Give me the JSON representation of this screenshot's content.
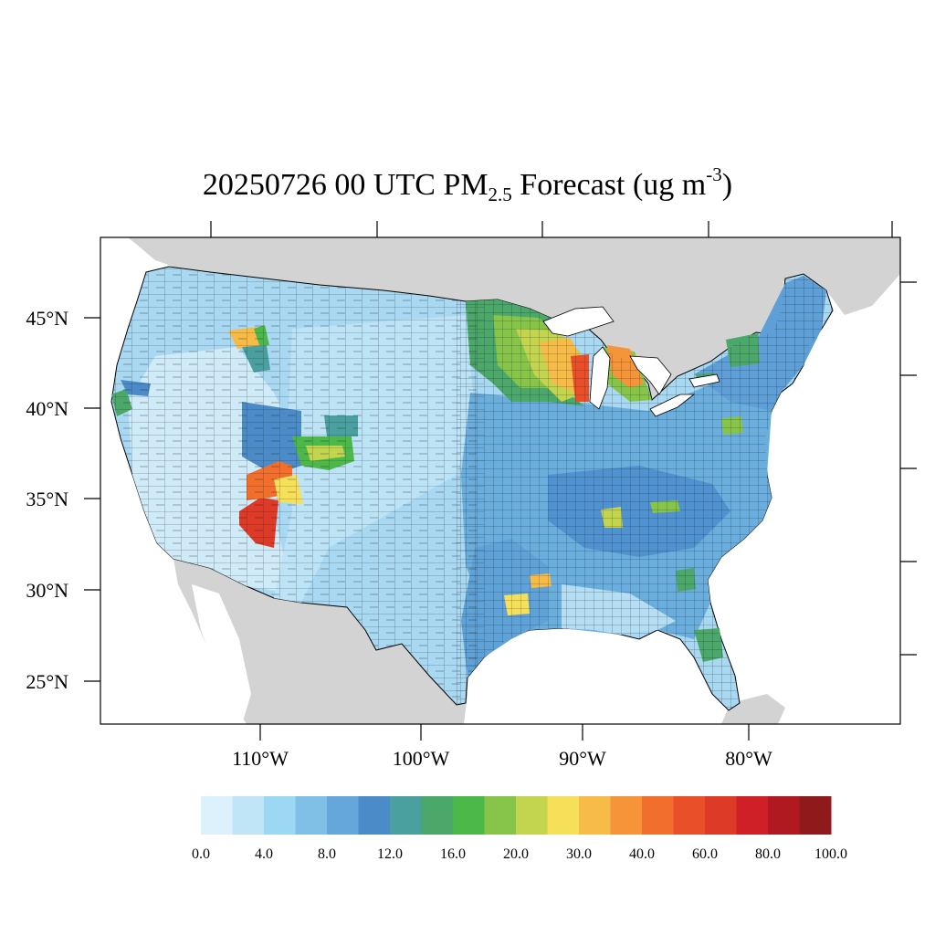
{
  "title": {
    "main": "20250726 00 UTC PM",
    "subscript": "2.5",
    "middle": " Forecast (ug m",
    "superscript": "-3",
    "end": ")"
  },
  "map": {
    "projection": "lambert-conformal",
    "lat_labels": [
      "45°N",
      "40°N",
      "35°N",
      "30°N",
      "25°N"
    ],
    "lon_labels": [
      "110°W",
      "100°W",
      "90°W",
      "80°W"
    ],
    "colors": {
      "land_outside": "#d3d3d3",
      "water": "#ffffff",
      "county_border": "#000000"
    },
    "hotspots": [
      {
        "region": "Southwest Utah / Arizona",
        "category": "40.0-80.0"
      },
      {
        "region": "Colorado",
        "category": "16.0-30.0"
      },
      {
        "region": "Northern Minnesota / Wisconsin",
        "category": "16.0-30.0"
      },
      {
        "region": "Northern Lower Michigan",
        "category": "30.0-60.0"
      },
      {
        "region": "Idaho / Montana",
        "category": "12.0-30.0"
      },
      {
        "region": "Northern California",
        "category": "12.0-16.0"
      },
      {
        "region": "Florida",
        "category": "12.0-16.0"
      }
    ]
  },
  "colorbar": {
    "colors": [
      "#dcf1fb",
      "#bfe5f7",
      "#9cd8f4",
      "#80c0e6",
      "#65a7db",
      "#4a8bc8",
      "#4a9f9f",
      "#4ba76a",
      "#4db84a",
      "#86c54a",
      "#c3d54f",
      "#f6e05a",
      "#f7bc48",
      "#f6943a",
      "#f16e2d",
      "#e9502a",
      "#dd3a27",
      "#cf2028",
      "#b0191f",
      "#8e1a1c"
    ],
    "labels": [
      "0.0",
      "4.0",
      "8.0",
      "12.0",
      "16.0",
      "20.0",
      "30.0",
      "40.0",
      "60.0",
      "80.0",
      "100.0"
    ]
  }
}
